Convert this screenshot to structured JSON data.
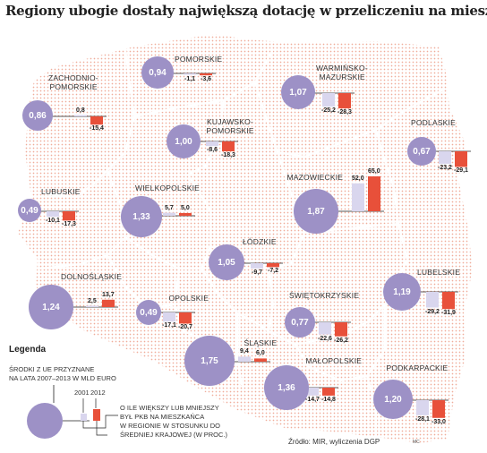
{
  "title": "Regiony ubogie dostały największą dotację w przeliczeniu na mieszkańca",
  "colors": {
    "bubble": "#9d91c6",
    "bar_2001": "#d9d6ee",
    "bar_2012": "#e8503a",
    "dots": "#f2b9a8"
  },
  "regions": [
    {
      "name": "POMORSKIE",
      "label_lines": [
        "POMORSKIE"
      ],
      "funds": "0,94",
      "v2001": "-1,1",
      "v2012": "-3,6"
    },
    {
      "name": "ZACHODNIOPOMORSKIE",
      "label_lines": [
        "ZACHODNIO-",
        "POMORSKIE"
      ],
      "funds": "0,86",
      "v2001": "0,8",
      "v2012": "-15,4"
    },
    {
      "name": "WARMIŃSKO-MAZURSKIE",
      "label_lines": [
        "WARMIŃSKO-",
        "MAZURSKIE"
      ],
      "funds": "1,07",
      "v2001": "-25,2",
      "v2012": "-28,3"
    },
    {
      "name": "KUJAWSKO-POMORSKIE",
      "label_lines": [
        "KUJAWSKO-",
        "POMORSKIE"
      ],
      "funds": "1,00",
      "v2001": "-8,6",
      "v2012": "-18,3"
    },
    {
      "name": "PODLASKIE",
      "label_lines": [
        "PODLASKIE"
      ],
      "funds": "0,67",
      "v2001": "-23,2",
      "v2012": "-29,1"
    },
    {
      "name": "LUBUSKIE",
      "label_lines": [
        "LUBUSKIE"
      ],
      "funds": "0,49",
      "v2001": "-10,1",
      "v2012": "-17,3"
    },
    {
      "name": "WIELKOPOLSKIE",
      "label_lines": [
        "WIELKOPOLSKIE"
      ],
      "funds": "1,33",
      "v2001": "5,7",
      "v2012": "5,0"
    },
    {
      "name": "MAZOWIECKIE",
      "label_lines": [
        "MAZOWIECKIE"
      ],
      "funds": "1,87",
      "v2001": "52,0",
      "v2012": "65,0"
    },
    {
      "name": "ŁÓDZKIE",
      "label_lines": [
        "ŁÓDZKIE"
      ],
      "funds": "1,05",
      "v2001": "-9,7",
      "v2012": "-7,2"
    },
    {
      "name": "DOLNOŚLĄSKIE",
      "label_lines": [
        "DOLNOŚLĄSKIE"
      ],
      "funds": "1,24",
      "v2001": "2,5",
      "v2012": "13,7"
    },
    {
      "name": "OPOLSKIE",
      "label_lines": [
        "OPOLSKIE"
      ],
      "funds": "0,49",
      "v2001": "-17,1",
      "v2012": "-20,7"
    },
    {
      "name": "LUBELSKIE",
      "label_lines": [
        "LUBELSKIE"
      ],
      "funds": "1,19",
      "v2001": "-29,2",
      "v2012": "-31,9"
    },
    {
      "name": "ŚWIĘTOKRZYSKIE",
      "label_lines": [
        "ŚWIĘTOKRZYSKIE"
      ],
      "funds": "0,77",
      "v2001": "-22,6",
      "v2012": "-26,2"
    },
    {
      "name": "ŚLĄSKIE",
      "label_lines": [
        "ŚLĄSKIE"
      ],
      "funds": "1,75",
      "v2001": "9,4",
      "v2012": "6,0"
    },
    {
      "name": "MAŁOPOLSKIE",
      "label_lines": [
        "MAŁOPOLSKIE"
      ],
      "funds": "1,36",
      "v2001": "-14,7",
      "v2012": "-14,8"
    },
    {
      "name": "PODKARPACKIE",
      "label_lines": [
        "PODKARPACKIE"
      ],
      "funds": "1,20",
      "v2001": "-28,1",
      "v2012": "-33,0"
    }
  ],
  "legend": {
    "title": "Legenda",
    "funds_lines": [
      "ŚRODKI Z UE PRZYZNANE",
      "NA LATA 2007–2013 W MLD EURO"
    ],
    "year_a": "2001",
    "year_b": "2012",
    "gdp_lines": [
      "O ILE WIĘKSZY LUB MNIEJSZY",
      "BYŁ PKB NA MIESZKAŃCA",
      "W REGIONIE W STOSUNKU DO",
      "ŚREDNIEJ KRAJOWEJ (W PROC.)"
    ]
  },
  "source": "Źródło: MIR, wyliczenia DGP",
  "credit": "MC"
}
